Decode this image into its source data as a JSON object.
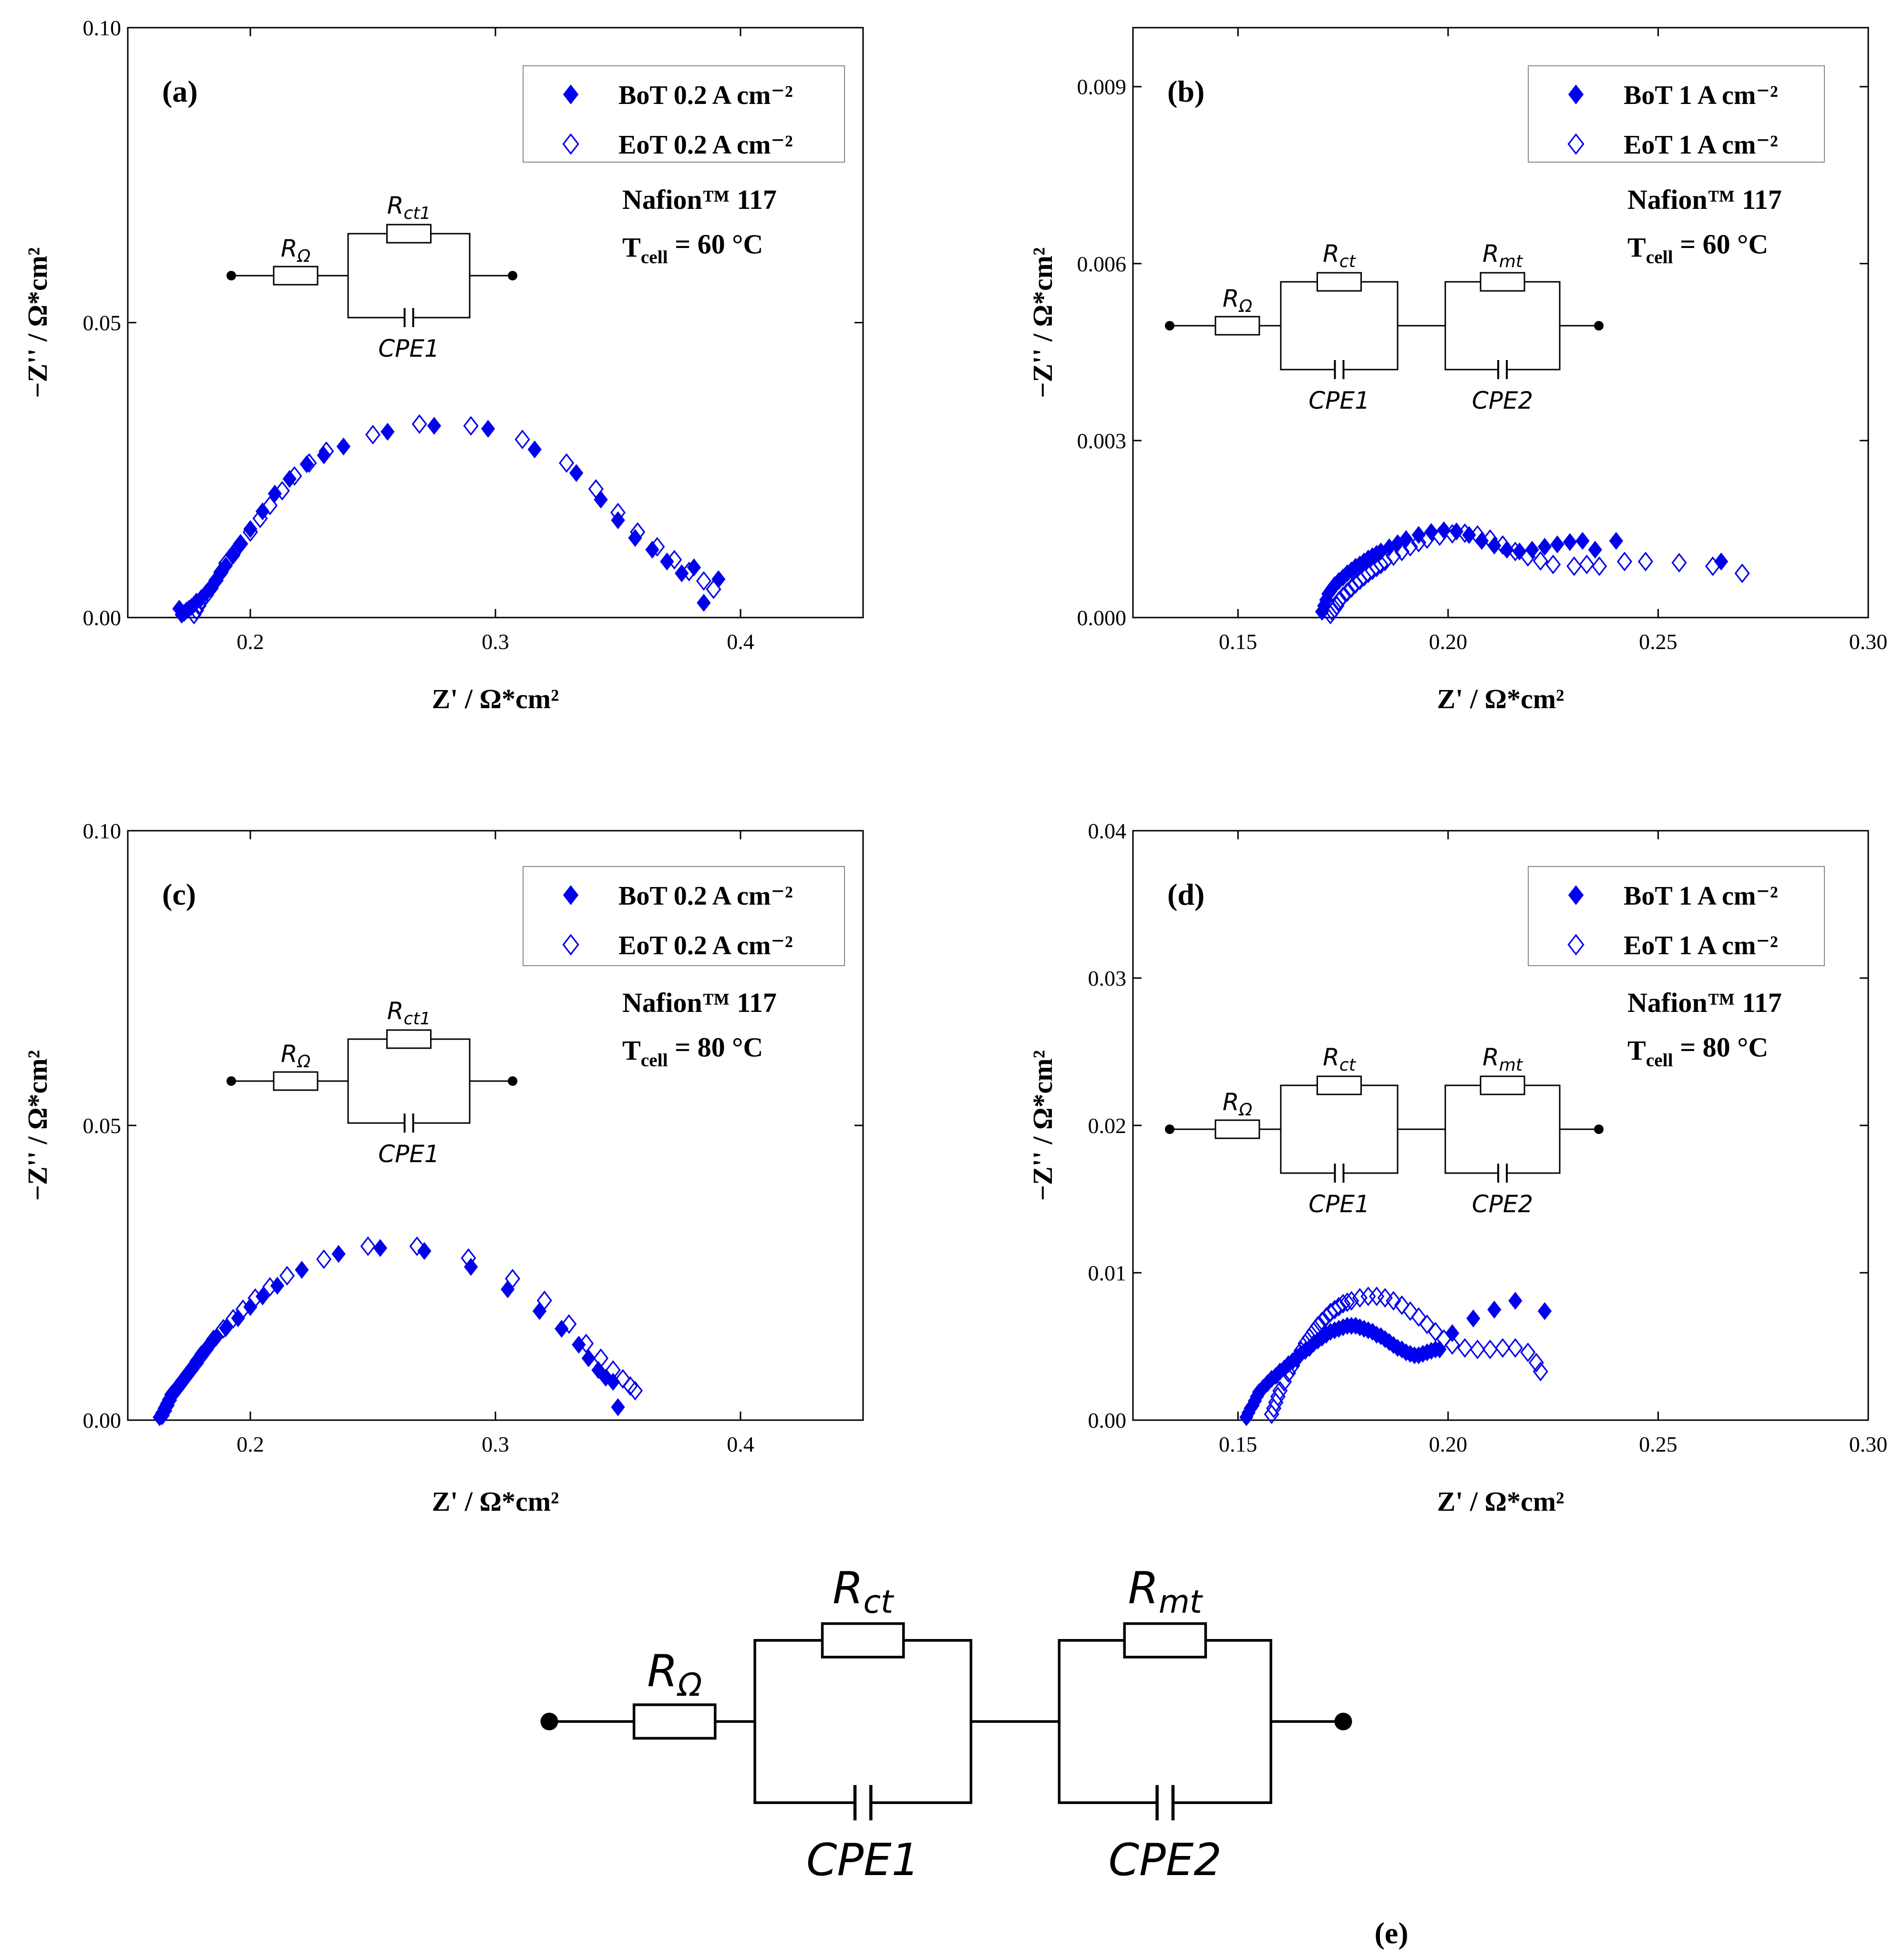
{
  "chart_data": [
    {
      "type": "scatter",
      "panel_label": "(a)",
      "xlabel": "Z' / Ω*cm²",
      "ylabel": "−Z'' / Ω*cm²",
      "xlim": [
        0.15,
        0.45
      ],
      "ylim": [
        0,
        0.1
      ],
      "xticks": [
        0.2,
        0.3,
        0.4
      ],
      "xtick_labels": [
        "0.2",
        "0.3",
        "0.4"
      ],
      "yticks": [
        0,
        0.05,
        0.1
      ],
      "ytick_labels": [
        "0.00",
        "0.05",
        "0.10"
      ],
      "legend": [
        "BoT  0.2 A cm⁻²",
        "EoT  0.2 A cm⁻²"
      ],
      "annotation": [
        "Nafion™ 117",
        "T",
        "cell",
        " = 60 °C"
      ],
      "circuit_labels": [
        "RΩ",
        "Rct1",
        "CPE1"
      ],
      "series": [
        {
          "name": "BoT  0.2 A cm⁻²",
          "marker": "filled-diamond",
          "color": "#0000ee",
          "x": [
            0.171,
            0.172,
            0.173,
            0.174,
            0.175,
            0.176,
            0.177,
            0.178,
            0.18,
            0.182,
            0.184,
            0.186,
            0.188,
            0.19,
            0.193,
            0.196,
            0.2,
            0.205,
            0.21,
            0.216,
            0.223,
            0.23,
            0.238,
            0.256,
            0.275,
            0.297,
            0.316,
            0.333,
            0.343,
            0.35,
            0.357,
            0.364,
            0.37,
            0.376,
            0.381,
            0.385,
            0.391
          ],
          "y": [
            0.0015,
            0.0005,
            0.0008,
            0.0012,
            0.0015,
            0.0018,
            0.0022,
            0.0027,
            0.0033,
            0.0042,
            0.0052,
            0.0063,
            0.0075,
            0.0088,
            0.0105,
            0.0125,
            0.015,
            0.018,
            0.021,
            0.0235,
            0.026,
            0.0275,
            0.029,
            0.0315,
            0.0325,
            0.032,
            0.0285,
            0.0245,
            0.02,
            0.0165,
            0.0135,
            0.0115,
            0.0095,
            0.0075,
            0.0085,
            0.0025,
            0.0065
          ]
        },
        {
          "name": "EoT  0.2 A cm⁻²",
          "marker": "open-diamond",
          "color": "#0000ee",
          "x": [
            0.177,
            0.178,
            0.179,
            0.18,
            0.182,
            0.184,
            0.186,
            0.188,
            0.19,
            0.193,
            0.196,
            0.2,
            0.204,
            0.208,
            0.213,
            0.218,
            0.224,
            0.231,
            0.25,
            0.269,
            0.29,
            0.311,
            0.329,
            0.341,
            0.35,
            0.358,
            0.366,
            0.373,
            0.379,
            0.385,
            0.389
          ],
          "y": [
            0.0005,
            0.0012,
            0.002,
            0.0028,
            0.0038,
            0.005,
            0.0063,
            0.0077,
            0.0092,
            0.0108,
            0.0125,
            0.0145,
            0.0168,
            0.019,
            0.0215,
            0.024,
            0.0262,
            0.0282,
            0.031,
            0.0328,
            0.0325,
            0.0302,
            0.0262,
            0.0218,
            0.0178,
            0.0145,
            0.012,
            0.0098,
            0.0078,
            0.0062,
            0.0048
          ]
        }
      ]
    },
    {
      "type": "scatter",
      "panel_label": "(b)",
      "xlabel": "Z' / Ω*cm²",
      "ylabel": "−Z'' / Ω*cm²",
      "xlim": [
        0.125,
        0.3
      ],
      "ylim": [
        0,
        0.01
      ],
      "xticks": [
        0.15,
        0.2,
        0.25,
        0.3
      ],
      "xtick_labels": [
        "0.15",
        "0.20",
        "0.25",
        "0.30"
      ],
      "yticks": [
        0,
        0.003,
        0.006,
        0.009
      ],
      "ytick_labels": [
        "0.000",
        "0.003",
        "0.006",
        "0.009"
      ],
      "legend": [
        "BoT  1 A cm⁻²",
        "EoT  1 A cm⁻²"
      ],
      "annotation": [
        "Nafion™ 117",
        "T",
        "cell",
        " = 60 °C"
      ],
      "circuit_labels": [
        "RΩ",
        "Rct",
        "Rmt",
        "CPE1",
        "CPE2"
      ],
      "series": [
        {
          "name": "BoT  1 A cm⁻²",
          "marker": "filled-diamond",
          "color": "#0000ee",
          "x": [
            0.17,
            0.1705,
            0.171,
            0.1715,
            0.172,
            0.1725,
            0.173,
            0.174,
            0.175,
            0.176,
            0.177,
            0.178,
            0.179,
            0.18,
            0.181,
            0.182,
            0.183,
            0.184,
            0.186,
            0.188,
            0.19,
            0.193,
            0.196,
            0.199,
            0.202,
            0.205,
            0.208,
            0.211,
            0.214,
            0.217,
            0.22,
            0.223,
            0.226,
            0.229,
            0.232,
            0.235,
            0.24,
            0.265
          ],
          "y": [
            0.0001,
            0.0002,
            0.0003,
            0.0004,
            0.00045,
            0.0005,
            0.00055,
            0.00062,
            0.00068,
            0.00075,
            0.0008,
            0.00086,
            0.0009,
            0.00095,
            0.001,
            0.00104,
            0.00108,
            0.00112,
            0.00119,
            0.00126,
            0.00133,
            0.0014,
            0.00145,
            0.00148,
            0.00146,
            0.0014,
            0.0013,
            0.00122,
            0.00115,
            0.00112,
            0.00115,
            0.0012,
            0.00124,
            0.00128,
            0.0013,
            0.00115,
            0.0013,
            0.00095
          ]
        },
        {
          "name": "EoT  1 A cm⁻²",
          "marker": "open-diamond",
          "color": "#0000ee",
          "x": [
            0.172,
            0.1725,
            0.173,
            0.1735,
            0.174,
            0.175,
            0.176,
            0.177,
            0.178,
            0.179,
            0.18,
            0.181,
            0.182,
            0.183,
            0.184,
            0.185,
            0.187,
            0.189,
            0.191,
            0.193,
            0.195,
            0.198,
            0.201,
            0.204,
            0.207,
            0.21,
            0.213,
            0.216,
            0.219,
            0.222,
            0.225,
            0.23,
            0.233,
            0.236,
            0.242,
            0.247,
            0.255,
            0.263,
            0.27
          ],
          "y": [
            5e-05,
            0.0001,
            0.00015,
            0.0002,
            0.00028,
            0.00036,
            0.00043,
            0.0005,
            0.00057,
            0.00063,
            0.00069,
            0.00075,
            0.0008,
            0.00085,
            0.0009,
            0.00095,
            0.00104,
            0.00112,
            0.0012,
            0.00127,
            0.00133,
            0.00138,
            0.00142,
            0.00143,
            0.0014,
            0.00133,
            0.00123,
            0.00112,
            0.00103,
            0.00096,
            0.0009,
            0.00087,
            0.0009,
            0.00087,
            0.00095,
            0.00095,
            0.00093,
            0.00087,
            0.00075
          ]
        }
      ]
    },
    {
      "type": "scatter",
      "panel_label": "(c)",
      "xlabel": "Z' / Ω*cm²",
      "ylabel": "−Z'' / Ω*cm²",
      "xlim": [
        0.15,
        0.45
      ],
      "ylim": [
        0,
        0.1
      ],
      "xticks": [
        0.2,
        0.3,
        0.4
      ],
      "xtick_labels": [
        "0.2",
        "0.3",
        "0.4"
      ],
      "yticks": [
        0,
        0.05,
        0.1
      ],
      "ytick_labels": [
        "0.00",
        "0.05",
        "0.10"
      ],
      "legend": [
        "BoT  0.2 A cm⁻²",
        "EoT  0.2 A cm⁻²"
      ],
      "annotation": [
        "Nafion™ 117",
        "T",
        "cell",
        " = 80 °C"
      ],
      "circuit_labels": [
        "RΩ",
        "Rct1",
        "CPE1"
      ],
      "series": [
        {
          "name": "BoT  0.2 A cm⁻²",
          "marker": "filled-diamond",
          "color": "#0000ee",
          "x": [
            0.163,
            0.164,
            0.165,
            0.166,
            0.167,
            0.168,
            0.17,
            0.172,
            0.174,
            0.176,
            0.178,
            0.18,
            0.183,
            0.186,
            0.19,
            0.195,
            0.2,
            0.205,
            0.211,
            0.221,
            0.236,
            0.253,
            0.271,
            0.29,
            0.305,
            0.318,
            0.327,
            0.334,
            0.338,
            0.342,
            0.345,
            0.348,
            0.35
          ],
          "y": [
            0.0005,
            0.0012,
            0.002,
            0.0028,
            0.0036,
            0.0045,
            0.0055,
            0.0066,
            0.0077,
            0.0088,
            0.01,
            0.0112,
            0.0126,
            0.014,
            0.0156,
            0.0173,
            0.0192,
            0.021,
            0.0228,
            0.0255,
            0.0282,
            0.0292,
            0.0287,
            0.026,
            0.0222,
            0.0185,
            0.0155,
            0.0128,
            0.0105,
            0.0085,
            0.0072,
            0.0065,
            0.0022
          ]
        },
        {
          "name": "EoT  0.2 A cm⁻²",
          "marker": "open-diamond",
          "color": "#0000ee",
          "x": [
            0.164,
            0.165,
            0.166,
            0.167,
            0.168,
            0.17,
            0.172,
            0.174,
            0.176,
            0.178,
            0.18,
            0.182,
            0.185,
            0.189,
            0.193,
            0.197,
            0.202,
            0.208,
            0.215,
            0.23,
            0.248,
            0.268,
            0.289,
            0.307,
            0.32,
            0.33,
            0.337,
            0.343,
            0.348,
            0.352,
            0.355,
            0.357
          ],
          "y": [
            0.0008,
            0.0016,
            0.0025,
            0.0034,
            0.0043,
            0.0053,
            0.0064,
            0.0075,
            0.0086,
            0.0097,
            0.0109,
            0.012,
            0.0137,
            0.0155,
            0.0172,
            0.0188,
            0.0207,
            0.0226,
            0.0245,
            0.0273,
            0.0295,
            0.0295,
            0.0275,
            0.024,
            0.0203,
            0.0163,
            0.013,
            0.0105,
            0.0085,
            0.007,
            0.0058,
            0.005
          ]
        }
      ]
    },
    {
      "type": "scatter",
      "panel_label": "(d)",
      "xlabel": "Z' / Ω*cm²",
      "ylabel": "−Z'' / Ω*cm²",
      "xlim": [
        0.125,
        0.3
      ],
      "ylim": [
        0,
        0.04
      ],
      "xticks": [
        0.15,
        0.2,
        0.25,
        0.3
      ],
      "xtick_labels": [
        "0.15",
        "0.20",
        "0.25",
        "0.30"
      ],
      "yticks": [
        0,
        0.01,
        0.02,
        0.03,
        0.04
      ],
      "ytick_labels": [
        "0.00",
        "0.01",
        "0.02",
        "0.03",
        "0.04"
      ],
      "legend": [
        "BoT  1 A cm⁻²",
        "EoT  1 A cm⁻²"
      ],
      "annotation": [
        "Nafion™ 117",
        "T",
        "cell",
        " = 80 °C"
      ],
      "circuit_labels": [
        "RΩ",
        "Rct",
        "Rmt",
        "CPE1",
        "CPE2"
      ],
      "series": [
        {
          "name": "BoT  1 A cm⁻²",
          "marker": "filled-diamond",
          "color": "#0000ee",
          "x": [
            0.152,
            0.1525,
            0.153,
            0.1535,
            0.154,
            0.1545,
            0.155,
            0.156,
            0.157,
            0.158,
            0.159,
            0.16,
            0.161,
            0.162,
            0.163,
            0.164,
            0.165,
            0.166,
            0.167,
            0.168,
            0.169,
            0.17,
            0.171,
            0.172,
            0.173,
            0.174,
            0.175,
            0.176,
            0.177,
            0.178,
            0.179,
            0.18,
            0.181,
            0.182,
            0.183,
            0.184,
            0.185,
            0.186,
            0.187,
            0.188,
            0.189,
            0.19,
            0.191,
            0.192,
            0.193,
            0.194,
            0.195,
            0.196,
            0.197,
            0.198,
            0.201,
            0.206,
            0.211,
            0.216,
            0.223
          ],
          "y": [
            0.0002,
            0.0005,
            0.0008,
            0.001,
            0.0013,
            0.0016,
            0.0019,
            0.0022,
            0.0025,
            0.0028,
            0.003,
            0.0033,
            0.0035,
            0.0038,
            0.004,
            0.0042,
            0.0045,
            0.0047,
            0.0049,
            0.0052,
            0.0054,
            0.0056,
            0.0058,
            0.006,
            0.0061,
            0.0062,
            0.0063,
            0.0064,
            0.0064,
            0.0064,
            0.0063,
            0.0062,
            0.0061,
            0.006,
            0.0058,
            0.0057,
            0.0055,
            0.0053,
            0.0051,
            0.0049,
            0.0048,
            0.0046,
            0.0045,
            0.0044,
            0.0044,
            0.0045,
            0.0046,
            0.0047,
            0.0048,
            0.0048,
            0.0059,
            0.0069,
            0.0075,
            0.0081,
            0.0074
          ]
        },
        {
          "name": "EoT  1 A cm⁻²",
          "marker": "open-diamond",
          "color": "#0000ee",
          "x": [
            0.158,
            0.1585,
            0.159,
            0.1595,
            0.16,
            0.161,
            0.162,
            0.163,
            0.164,
            0.165,
            0.166,
            0.167,
            0.168,
            0.169,
            0.17,
            0.171,
            0.172,
            0.173,
            0.174,
            0.175,
            0.176,
            0.177,
            0.179,
            0.181,
            0.183,
            0.185,
            0.187,
            0.189,
            0.191,
            0.193,
            0.195,
            0.197,
            0.199,
            0.201,
            0.204,
            0.207,
            0.21,
            0.213,
            0.216,
            0.219,
            0.221,
            0.222
          ],
          "y": [
            0.0004,
            0.0008,
            0.0012,
            0.0016,
            0.002,
            0.0026,
            0.0032,
            0.0037,
            0.0042,
            0.0047,
            0.0052,
            0.0056,
            0.006,
            0.0064,
            0.0067,
            0.007,
            0.0073,
            0.0075,
            0.0077,
            0.0079,
            0.008,
            0.0081,
            0.0083,
            0.0084,
            0.0084,
            0.0083,
            0.0081,
            0.0078,
            0.0074,
            0.007,
            0.0065,
            0.006,
            0.0055,
            0.0051,
            0.0049,
            0.0048,
            0.0048,
            0.0049,
            0.0049,
            0.0046,
            0.0039,
            0.0033
          ]
        }
      ]
    }
  ],
  "panel_e": {
    "panel_label": "(e)",
    "circuit_labels": [
      "RΩ",
      "Rct",
      "Rmt",
      "CPE1",
      "CPE2"
    ]
  }
}
